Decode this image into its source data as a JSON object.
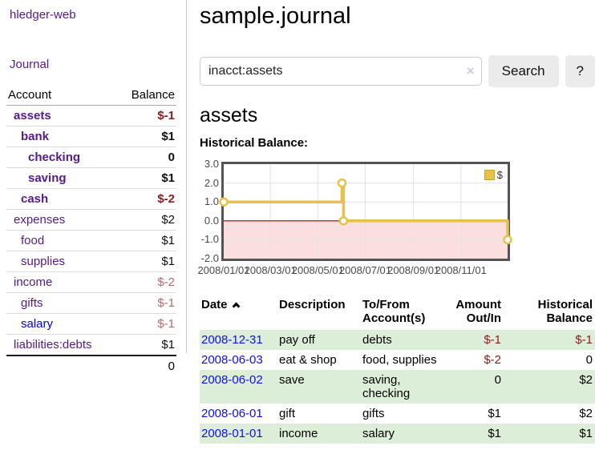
{
  "sidebar": {
    "brand": "hledger-web",
    "nav": {
      "journal": "Journal"
    },
    "accounts": {
      "header": {
        "account": "Account",
        "balance": "Balance"
      },
      "rows": [
        {
          "name": "assets",
          "balance": "$-1",
          "depth": 1,
          "bold": true,
          "balance_style": "neg-strong"
        },
        {
          "name": "bank",
          "balance": "$1",
          "depth": 2,
          "bold": true,
          "balance_style": "pos"
        },
        {
          "name": "checking",
          "balance": "0",
          "depth": 3,
          "bold": true,
          "balance_style": "pos"
        },
        {
          "name": "saving",
          "balance": "$1",
          "depth": 3,
          "bold": true,
          "balance_style": "pos"
        },
        {
          "name": "cash",
          "balance": "$-2",
          "depth": 2,
          "bold": true,
          "balance_style": "neg-strong"
        },
        {
          "name": "expenses",
          "balance": "$2",
          "depth": 1,
          "bold": false,
          "balance_style": "pos"
        },
        {
          "name": "food",
          "balance": "$1",
          "depth": 2,
          "bold": false,
          "balance_style": "pos"
        },
        {
          "name": "supplies",
          "balance": "$1",
          "depth": 2,
          "bold": false,
          "balance_style": "pos"
        },
        {
          "name": "income",
          "balance": "$-2",
          "depth": 1,
          "bold": false,
          "balance_style": "neg-soft"
        },
        {
          "name": "gifts",
          "balance": "$-1",
          "depth": 2,
          "bold": false,
          "balance_style": "neg-soft"
        },
        {
          "name": "salary",
          "balance": "$-1",
          "depth": 2,
          "bold": false,
          "balance_style": "neg-soft",
          "link_style": "blue"
        },
        {
          "name": "liabilities:debts",
          "balance": "$1",
          "depth": 1,
          "bold": false,
          "balance_style": "pos"
        }
      ],
      "total": "0"
    }
  },
  "header": {
    "title": "sample.journal"
  },
  "search": {
    "value": "inacct:assets",
    "clear_icon": "×",
    "search_button": "Search",
    "help_button": "?"
  },
  "account_view": {
    "heading": "assets",
    "chart_title": "Historical Balance:"
  },
  "chart_data": {
    "type": "line",
    "style": "step-after",
    "title": "Historical Balance",
    "legend": [
      {
        "label": "$",
        "color": "#e7c24b"
      }
    ],
    "legend_position": "top-right",
    "grid": true,
    "x_start": "2008-01-01",
    "x_end": "2008-12-31",
    "ylim": [
      -2,
      3
    ],
    "x_ticks": [
      {
        "date": "2008-01-01",
        "label": "2008/01/01"
      },
      {
        "date": "2008-03-01",
        "label": "2008/03/01"
      },
      {
        "date": "2008-05-01",
        "label": "2008/05/01"
      },
      {
        "date": "2008-07-01",
        "label": "2008/07/01"
      },
      {
        "date": "2008-09-01",
        "label": "2008/09/01"
      },
      {
        "date": "2008-11-01",
        "label": "2008/11/01"
      }
    ],
    "y_ticks": [
      {
        "value": 3,
        "label": "3.0"
      },
      {
        "value": 2,
        "label": "2.0"
      },
      {
        "value": 1,
        "label": "1.0"
      },
      {
        "value": 0,
        "label": "0.0"
      },
      {
        "value": -1,
        "label": "-1.0"
      },
      {
        "value": -2,
        "label": "-2.0"
      }
    ],
    "points": [
      {
        "date": "2008-01-01",
        "value": 1
      },
      {
        "date": "2008-06-01",
        "value": 2
      },
      {
        "date": "2008-06-03",
        "value": 0
      },
      {
        "date": "2008-12-31",
        "value": -1
      }
    ],
    "line_color": "#e7c24b",
    "negative_region_fill": "#fbdfdf",
    "zero_line_color": "#a40000",
    "grid_color": "#e2e2e2"
  },
  "register": {
    "headers": {
      "date": "Date",
      "description": "Description",
      "accounts_line1": "To/From",
      "accounts_line2": "Account(s)",
      "amount_line1": "Amount",
      "amount_line2": "Out/In",
      "balance_line1": "Historical",
      "balance_line2": "Balance"
    },
    "rows": [
      {
        "date": "2008-12-31",
        "description": "pay off",
        "accounts": "debts",
        "amount": "$-1",
        "balance": "$-1",
        "amount_negative": true,
        "balance_negative": true
      },
      {
        "date": "2008-06-03",
        "description": "eat & shop",
        "accounts": "food, supplies",
        "amount": "$-2",
        "balance": "0",
        "amount_negative": true,
        "balance_negative": false
      },
      {
        "date": "2008-06-02",
        "description": "save",
        "accounts": "saving, checking",
        "amount": "0",
        "balance": "$2",
        "amount_negative": false,
        "balance_negative": false
      },
      {
        "date": "2008-06-01",
        "description": "gift",
        "accounts": "gifts",
        "amount": "$1",
        "balance": "$2",
        "amount_negative": false,
        "balance_negative": false
      },
      {
        "date": "2008-01-01",
        "description": "income",
        "accounts": "salary",
        "amount": "$1",
        "balance": "$1",
        "amount_negative": false,
        "balance_negative": false
      }
    ]
  },
  "colors": {
    "link_purple": "#551a8b",
    "link_blue": "#0000e0",
    "date_link_blue": "#0f0fe8",
    "negative_strong": "#8f1a1c",
    "negative_soft": "#b96a6c",
    "row_stripe_green": "#ddeed8",
    "button_gray": "#ebebeb"
  }
}
